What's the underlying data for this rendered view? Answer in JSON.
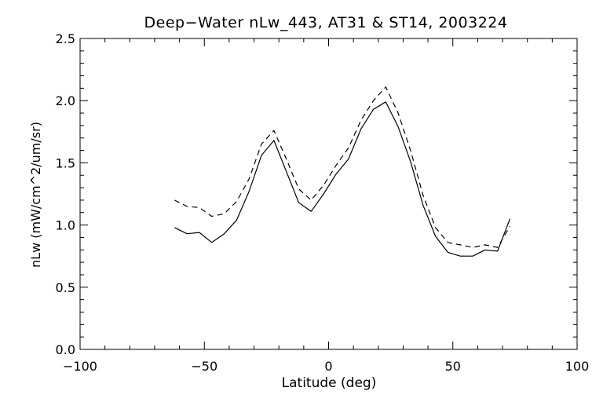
{
  "chart_data": {
    "type": "line",
    "title": "Deep−Water nLw_443, AT31 & ST14, 2003224",
    "xlabel": "Latitude (deg)",
    "ylabel": "nLw (mW/cm^2/um/sr)",
    "xlim": [
      -100,
      100
    ],
    "ylim": [
      0.0,
      2.5
    ],
    "xticks": [
      -100,
      -50,
      0,
      50,
      100
    ],
    "xtick_labels": [
      "−100",
      "−50",
      "0",
      "50",
      "100"
    ],
    "yticks": [
      0.0,
      0.5,
      1.0,
      1.5,
      2.0,
      2.5
    ],
    "ytick_labels": [
      "0.0",
      "0.5",
      "1.0",
      "1.5",
      "2.0",
      "2.5"
    ],
    "grid": false,
    "series": [
      {
        "style": "solid",
        "x": [
          -62,
          -57,
          -52,
          -47,
          -42,
          -37,
          -32,
          -27,
          -22,
          -17,
          -12,
          -7,
          -2,
          3,
          8,
          13,
          18,
          23,
          28,
          33,
          38,
          43,
          48,
          53,
          58,
          63,
          68,
          73
        ],
        "y": [
          0.98,
          0.93,
          0.94,
          0.86,
          0.93,
          1.04,
          1.27,
          1.56,
          1.68,
          1.43,
          1.18,
          1.11,
          1.25,
          1.41,
          1.53,
          1.77,
          1.93,
          1.99,
          1.79,
          1.51,
          1.16,
          0.91,
          0.78,
          0.75,
          0.75,
          0.8,
          0.79,
          1.05
        ]
      },
      {
        "style": "dashed",
        "x": [
          -62,
          -57,
          -52,
          -47,
          -42,
          -37,
          -32,
          -27,
          -22,
          -17,
          -12,
          -7,
          -2,
          3,
          8,
          13,
          18,
          23,
          28,
          33,
          38,
          43,
          48,
          53,
          58,
          63,
          68,
          73
        ],
        "y": [
          1.2,
          1.15,
          1.14,
          1.07,
          1.09,
          1.19,
          1.37,
          1.65,
          1.76,
          1.53,
          1.29,
          1.2,
          1.32,
          1.48,
          1.62,
          1.84,
          2.0,
          2.11,
          1.9,
          1.6,
          1.24,
          0.98,
          0.86,
          0.84,
          0.82,
          0.84,
          0.82,
          0.99
        ]
      }
    ]
  }
}
